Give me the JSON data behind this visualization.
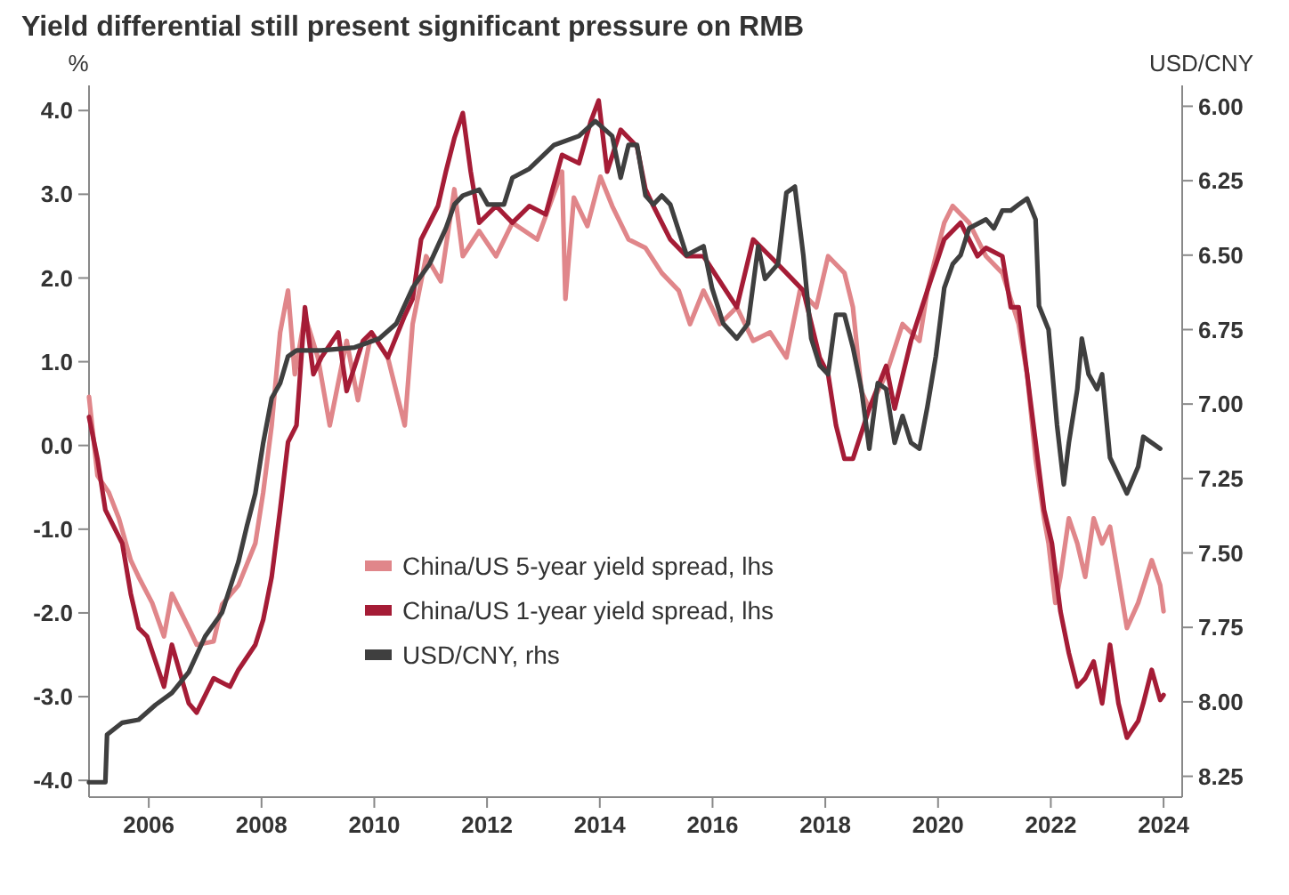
{
  "chart_data": {
    "type": "line",
    "title": "Yield differential still present significant pressure on RMB",
    "ylabel": "%",
    "y2label": "USD/CNY",
    "xlim": [
      2004.94,
      2024.33
    ],
    "xticks": [
      2006,
      2008,
      2010,
      2012,
      2014,
      2016,
      2018,
      2020,
      2022,
      2024
    ],
    "ylim": [
      -4.2,
      4.3
    ],
    "yticks": [
      {
        "value": -4,
        "label": "-4.0"
      },
      {
        "value": -3,
        "label": "-3.0"
      },
      {
        "value": -2,
        "label": "-2.0"
      },
      {
        "value": -1,
        "label": "-1.0"
      },
      {
        "value": 0,
        "label": "0.0"
      },
      {
        "value": 1,
        "label": "1.0"
      },
      {
        "value": 2,
        "label": "2.0"
      },
      {
        "value": 3,
        "label": "3.0"
      },
      {
        "value": 4,
        "label": "4.0"
      }
    ],
    "y2lim": [
      8.32,
      5.93
    ],
    "y2ticks": [
      {
        "value": 6,
        "label": "6.00"
      },
      6.25,
      {
        "value": 6.5,
        "label": "6.50"
      },
      6.75,
      {
        "value": 7,
        "label": "7.00"
      },
      7.25,
      {
        "value": 7.5,
        "label": "7.50"
      },
      7.75,
      {
        "value": 8,
        "label": "8.00"
      },
      8.25
    ],
    "legend": "bottom",
    "grid": false,
    "line_style": "solid",
    "marker": "none",
    "series": [
      {
        "name": "China/US 5-year yield spread, lhs",
        "color": "#e0868a",
        "x": [
          2004.94,
          2005.09,
          2005.29,
          2005.47,
          2005.68,
          2005.82,
          2006.06,
          2006.27,
          2006.41,
          2006.71,
          2006.85,
          2007.15,
          2007.3,
          2007.59,
          2007.89,
          2008.03,
          2008.18,
          2008.33,
          2008.47,
          2008.59,
          2008.77,
          2009.0,
          2009.21,
          2009.51,
          2009.71,
          2009.95,
          2010.24,
          2010.54,
          2010.68,
          2010.92,
          2011.18,
          2011.42,
          2011.57,
          2011.86,
          2012.16,
          2012.45,
          2012.89,
          2013.33,
          2013.39,
          2013.54,
          2013.78,
          2014.01,
          2014.22,
          2014.51,
          2014.81,
          2015.1,
          2015.4,
          2015.6,
          2015.84,
          2016.13,
          2016.43,
          2016.72,
          2017.02,
          2017.31,
          2017.55,
          2017.84,
          2018.05,
          2018.34,
          2018.49,
          2018.64,
          2018.78,
          2019.08,
          2019.37,
          2019.67,
          2019.81,
          2019.96,
          2020.11,
          2020.26,
          2020.55,
          2020.85,
          2021.14,
          2021.43,
          2021.58,
          2021.73,
          2021.88,
          2021.96,
          2022.08,
          2022.17,
          2022.32,
          2022.47,
          2022.61,
          2022.76,
          2022.91,
          2023.05,
          2023.2,
          2023.35,
          2023.55,
          2023.79,
          2023.94,
          2024.0
        ],
        "values": [
          0.58,
          -0.36,
          -0.56,
          -0.87,
          -1.37,
          -1.57,
          -1.88,
          -2.28,
          -1.77,
          -2.18,
          -2.38,
          -2.34,
          -1.9,
          -1.67,
          -1.17,
          -0.56,
          0.24,
          1.35,
          1.85,
          0.85,
          1.55,
          1.05,
          0.24,
          1.25,
          0.54,
          1.35,
          1.05,
          0.24,
          1.45,
          2.26,
          1.96,
          3.06,
          2.26,
          2.56,
          2.26,
          2.66,
          2.46,
          3.27,
          1.75,
          2.96,
          2.62,
          3.21,
          2.86,
          2.46,
          2.36,
          2.06,
          1.85,
          1.45,
          1.85,
          1.45,
          1.65,
          1.25,
          1.35,
          1.05,
          1.85,
          1.65,
          2.26,
          2.06,
          1.65,
          0.65,
          0.44,
          0.85,
          1.45,
          1.25,
          1.85,
          2.26,
          2.66,
          2.86,
          2.66,
          2.26,
          2.06,
          1.45,
          0.85,
          -0.16,
          -0.87,
          -1.17,
          -1.88,
          -1.57,
          -0.87,
          -1.17,
          -1.57,
          -0.87,
          -1.17,
          -0.97,
          -1.57,
          -2.18,
          -1.88,
          -1.37,
          -1.67,
          -1.98
        ]
      },
      {
        "name": "China/US 1-year yield spread, lhs",
        "color": "#a51c36",
        "x": [
          2004.94,
          2005.09,
          2005.23,
          2005.53,
          2005.68,
          2005.82,
          2005.97,
          2006.12,
          2006.27,
          2006.41,
          2006.71,
          2006.85,
          2007.15,
          2007.44,
          2007.59,
          2007.89,
          2008.03,
          2008.18,
          2008.33,
          2008.47,
          2008.62,
          2008.77,
          2008.92,
          2009.06,
          2009.36,
          2009.51,
          2009.8,
          2009.95,
          2010.24,
          2010.54,
          2010.68,
          2010.83,
          2011.13,
          2011.27,
          2011.42,
          2011.57,
          2011.71,
          2011.86,
          2012.16,
          2012.45,
          2012.75,
          2013.04,
          2013.33,
          2013.63,
          2013.84,
          2013.98,
          2014.13,
          2014.37,
          2014.66,
          2014.81,
          2014.95,
          2015.25,
          2015.54,
          2015.84,
          2016.13,
          2016.43,
          2016.72,
          2017.02,
          2017.31,
          2017.61,
          2017.9,
          2018.05,
          2018.19,
          2018.34,
          2018.49,
          2018.78,
          2019.08,
          2019.23,
          2019.52,
          2019.81,
          2020.11,
          2020.4,
          2020.7,
          2020.85,
          2021.14,
          2021.29,
          2021.43,
          2021.58,
          2021.73,
          2021.88,
          2022.02,
          2022.17,
          2022.32,
          2022.47,
          2022.61,
          2022.76,
          2022.91,
          2023.05,
          2023.2,
          2023.35,
          2023.55,
          2023.64,
          2023.79,
          2023.94,
          2024.0
        ],
        "values": [
          0.34,
          -0.16,
          -0.77,
          -1.17,
          -1.77,
          -2.18,
          -2.28,
          -2.58,
          -2.88,
          -2.38,
          -3.08,
          -3.19,
          -2.78,
          -2.88,
          -2.68,
          -2.38,
          -2.08,
          -1.57,
          -0.77,
          0.04,
          0.24,
          1.65,
          0.85,
          1.05,
          1.35,
          0.65,
          1.25,
          1.35,
          1.05,
          1.55,
          1.75,
          2.46,
          2.86,
          3.27,
          3.67,
          3.97,
          3.27,
          2.66,
          2.86,
          2.66,
          2.86,
          2.76,
          3.47,
          3.37,
          3.87,
          4.12,
          3.27,
          3.77,
          3.57,
          3.06,
          2.86,
          2.46,
          2.26,
          2.26,
          1.96,
          1.65,
          2.46,
          2.26,
          2.06,
          1.85,
          1.05,
          0.85,
          0.24,
          -0.16,
          -0.16,
          0.44,
          0.95,
          0.44,
          1.25,
          1.85,
          2.46,
          2.66,
          2.26,
          2.36,
          2.26,
          1.65,
          1.65,
          0.85,
          0.04,
          -0.77,
          -1.17,
          -1.98,
          -2.48,
          -2.88,
          -2.78,
          -2.58,
          -3.08,
          -2.38,
          -3.08,
          -3.49,
          -3.29,
          -3.08,
          -2.68,
          -3.04,
          -2.98
        ]
      },
      {
        "name": "USD/CNY, rhs",
        "color": "#3f3f3f",
        "axis": "y2",
        "line_style": "solid",
        "x": [
          2004.94,
          2005.23,
          2005.26,
          2005.53,
          2005.82,
          2006.12,
          2006.41,
          2006.71,
          2007.0,
          2007.3,
          2007.59,
          2007.74,
          2007.89,
          2008.03,
          2008.18,
          2008.33,
          2008.47,
          2008.62,
          2009.06,
          2009.65,
          2010.09,
          2010.39,
          2010.68,
          2010.98,
          2011.27,
          2011.42,
          2011.57,
          2011.86,
          2012.01,
          2012.3,
          2012.45,
          2012.75,
          2013.19,
          2013.63,
          2013.92,
          2014.22,
          2014.37,
          2014.51,
          2014.66,
          2014.81,
          2014.95,
          2015.1,
          2015.25,
          2015.54,
          2015.84,
          2015.99,
          2016.19,
          2016.43,
          2016.63,
          2016.81,
          2016.93,
          2017.16,
          2017.31,
          2017.46,
          2017.61,
          2017.75,
          2017.9,
          2018.05,
          2018.19,
          2018.34,
          2018.49,
          2018.64,
          2018.78,
          2018.93,
          2019.08,
          2019.23,
          2019.37,
          2019.52,
          2019.67,
          2019.81,
          2019.96,
          2020.11,
          2020.26,
          2020.4,
          2020.55,
          2020.85,
          2020.99,
          2021.14,
          2021.29,
          2021.43,
          2021.58,
          2021.73,
          2021.79,
          2021.96,
          2022.11,
          2022.23,
          2022.32,
          2022.47,
          2022.55,
          2022.67,
          2022.82,
          2022.91,
          2023.05,
          2023.2,
          2023.35,
          2023.55,
          2023.64,
          2023.79,
          2023.94
        ],
        "values": [
          8.27,
          8.27,
          8.11,
          8.07,
          8.06,
          8.01,
          7.97,
          7.9,
          7.78,
          7.7,
          7.53,
          7.41,
          7.3,
          7.13,
          6.98,
          6.93,
          6.84,
          6.82,
          6.82,
          6.81,
          6.78,
          6.73,
          6.61,
          6.53,
          6.41,
          6.33,
          6.3,
          6.28,
          6.33,
          6.33,
          6.24,
          6.21,
          6.13,
          6.1,
          6.05,
          6.1,
          6.24,
          6.13,
          6.13,
          6.3,
          6.33,
          6.3,
          6.33,
          6.5,
          6.47,
          6.61,
          6.73,
          6.78,
          6.73,
          6.47,
          6.58,
          6.53,
          6.29,
          6.27,
          6.5,
          6.78,
          6.87,
          6.9,
          6.7,
          6.7,
          6.81,
          6.95,
          7.15,
          6.93,
          6.95,
          7.13,
          7.04,
          7.13,
          7.15,
          7.01,
          6.84,
          6.61,
          6.53,
          6.5,
          6.41,
          6.38,
          6.41,
          6.35,
          6.35,
          6.33,
          6.31,
          6.38,
          6.67,
          6.75,
          7.07,
          7.27,
          7.13,
          6.95,
          6.78,
          6.9,
          6.95,
          6.9,
          7.18,
          7.24,
          7.3,
          7.21,
          7.11,
          7.13,
          7.15
        ]
      }
    ]
  }
}
